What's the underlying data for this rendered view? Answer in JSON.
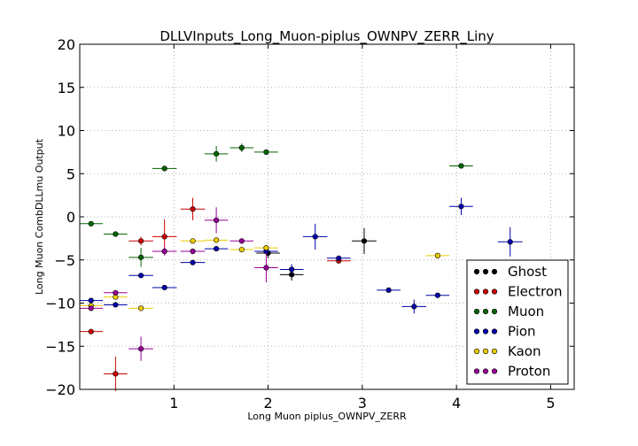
{
  "chart_data": {
    "type": "scatter",
    "title": "DLLVInputs_Long_Muon-piplus_OWNPV_ZERR_Liny",
    "xlabel": "Long Muon piplus_OWNPV_ZERR",
    "ylabel": "Long Muon CombDLLmu Output",
    "xlim": [
      0,
      5.25
    ],
    "ylim": [
      -20,
      20
    ],
    "xticks": [
      "1",
      "2",
      "3",
      "4",
      "5"
    ],
    "yticks": [
      "20",
      "15",
      "10",
      "5",
      "0",
      "−5",
      "−10",
      "−15",
      "−20"
    ],
    "xtick_values": [
      1,
      2,
      3,
      4,
      5
    ],
    "ytick_values": [
      20,
      15,
      10,
      5,
      0,
      -5,
      -10,
      -15,
      -20
    ],
    "grid": true,
    "legend_position": "lower-right",
    "series": [
      {
        "name": "Ghost",
        "color": "#000000",
        "points": [
          {
            "x": 2.0,
            "xerr": 0.125,
            "y": -4.2,
            "yerr": 0.6
          },
          {
            "x": 2.25,
            "xerr": 0.125,
            "y": -6.7,
            "yerr": 0.7
          },
          {
            "x": 3.02,
            "xerr": 0.13,
            "y": -2.8,
            "yerr": 1.5
          }
        ]
      },
      {
        "name": "Electron",
        "color": "#cc0000",
        "points": [
          {
            "x": 0.12,
            "xerr": 0.125,
            "y": -13.3,
            "yerr": 0.3
          },
          {
            "x": 0.38,
            "xerr": 0.125,
            "y": -18.2,
            "yerr": 2.0
          },
          {
            "x": 0.65,
            "xerr": 0.13,
            "y": -2.8,
            "yerr": 0.5
          },
          {
            "x": 0.9,
            "xerr": 0.13,
            "y": -2.3,
            "yerr": 2.0
          },
          {
            "x": 1.2,
            "xerr": 0.13,
            "y": 0.9,
            "yerr": 1.3
          },
          {
            "x": 2.75,
            "xerr": 0.125,
            "y": -5.1,
            "yerr": 0.3
          }
        ]
      },
      {
        "name": "Muon",
        "color": "#006600",
        "points": [
          {
            "x": 0.12,
            "xerr": 0.125,
            "y": -0.8,
            "yerr": 0.2
          },
          {
            "x": 0.38,
            "xerr": 0.125,
            "y": -2.0,
            "yerr": 0.2
          },
          {
            "x": 0.65,
            "xerr": 0.13,
            "y": -4.7,
            "yerr": 1.1
          },
          {
            "x": 0.9,
            "xerr": 0.13,
            "y": 5.6,
            "yerr": 0.2
          },
          {
            "x": 1.45,
            "xerr": 0.125,
            "y": 7.3,
            "yerr": 0.9
          },
          {
            "x": 1.72,
            "xerr": 0.125,
            "y": 8.0,
            "yerr": 0.5
          },
          {
            "x": 1.98,
            "xerr": 0.125,
            "y": 7.5,
            "yerr": 0.2
          },
          {
            "x": 4.05,
            "xerr": 0.125,
            "y": 5.9,
            "yerr": 0.2
          }
        ]
      },
      {
        "name": "Pion",
        "color": "#0000aa",
        "points": [
          {
            "x": 0.12,
            "xerr": 0.125,
            "y": -9.7,
            "yerr": 0.2
          },
          {
            "x": 0.38,
            "xerr": 0.125,
            "y": -10.2,
            "yerr": 0.2
          },
          {
            "x": 0.65,
            "xerr": 0.13,
            "y": -6.8,
            "yerr": 0.2
          },
          {
            "x": 0.9,
            "xerr": 0.13,
            "y": -8.2,
            "yerr": 0.2
          },
          {
            "x": 1.2,
            "xerr": 0.13,
            "y": -5.3,
            "yerr": 0.2
          },
          {
            "x": 1.45,
            "xerr": 0.125,
            "y": -3.7,
            "yerr": 0.3
          },
          {
            "x": 1.98,
            "xerr": 0.125,
            "y": -4.0,
            "yerr": 0.3
          },
          {
            "x": 2.25,
            "xerr": 0.125,
            "y": -6.1,
            "yerr": 0.6
          },
          {
            "x": 2.5,
            "xerr": 0.13,
            "y": -2.3,
            "yerr": 1.5
          },
          {
            "x": 2.75,
            "xerr": 0.125,
            "y": -4.8,
            "yerr": 0.3
          },
          {
            "x": 3.28,
            "xerr": 0.125,
            "y": -8.5,
            "yerr": 0.2
          },
          {
            "x": 3.55,
            "xerr": 0.13,
            "y": -10.4,
            "yerr": 0.8
          },
          {
            "x": 3.8,
            "xerr": 0.125,
            "y": -9.1,
            "yerr": 0.2
          },
          {
            "x": 4.05,
            "xerr": 0.125,
            "y": 1.2,
            "yerr": 1.0
          },
          {
            "x": 4.57,
            "xerr": 0.13,
            "y": -2.9,
            "yerr": 1.7
          }
        ]
      },
      {
        "name": "Kaon",
        "color": "#eecc00",
        "points": [
          {
            "x": 0.12,
            "xerr": 0.125,
            "y": -10.3,
            "yerr": 0.2
          },
          {
            "x": 0.38,
            "xerr": 0.125,
            "y": -9.3,
            "yerr": 0.2
          },
          {
            "x": 0.65,
            "xerr": 0.13,
            "y": -10.6,
            "yerr": 0.3
          },
          {
            "x": 1.2,
            "xerr": 0.13,
            "y": -2.8,
            "yerr": 0.2
          },
          {
            "x": 1.45,
            "xerr": 0.125,
            "y": -2.7,
            "yerr": 0.2
          },
          {
            "x": 1.72,
            "xerr": 0.125,
            "y": -3.8,
            "yerr": 0.2
          },
          {
            "x": 1.98,
            "xerr": 0.125,
            "y": -3.6,
            "yerr": 0.2
          },
          {
            "x": 3.8,
            "xerr": 0.125,
            "y": -4.5,
            "yerr": 0.2
          }
        ]
      },
      {
        "name": "Proton",
        "color": "#990099",
        "points": [
          {
            "x": 0.12,
            "xerr": 0.125,
            "y": -10.6,
            "yerr": 0.2
          },
          {
            "x": 0.38,
            "xerr": 0.125,
            "y": -8.8,
            "yerr": 0.2
          },
          {
            "x": 0.65,
            "xerr": 0.13,
            "y": -15.3,
            "yerr": 1.4
          },
          {
            "x": 0.9,
            "xerr": 0.13,
            "y": -4.0,
            "yerr": 0.5
          },
          {
            "x": 1.2,
            "xerr": 0.13,
            "y": -4.0,
            "yerr": 0.3
          },
          {
            "x": 1.45,
            "xerr": 0.125,
            "y": -0.4,
            "yerr": 1.5
          },
          {
            "x": 1.72,
            "xerr": 0.125,
            "y": -2.8,
            "yerr": 0.3
          },
          {
            "x": 1.98,
            "xerr": 0.125,
            "y": -5.9,
            "yerr": 1.7
          }
        ]
      }
    ]
  }
}
